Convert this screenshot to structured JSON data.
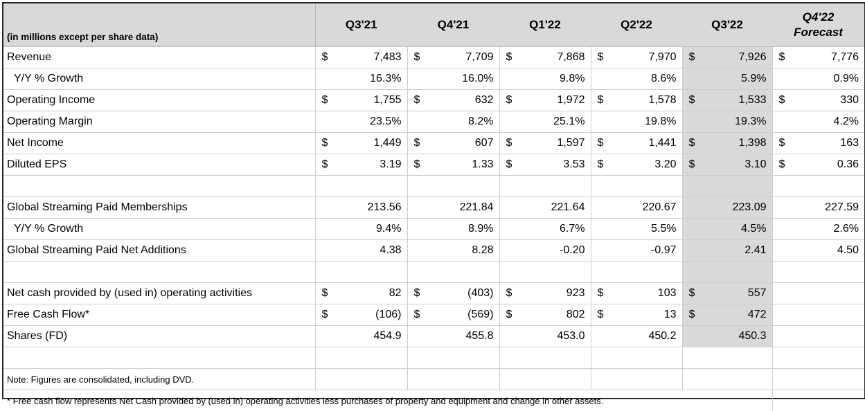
{
  "chart_data": {
    "type": "table",
    "unit_note": "(in millions except per share data)",
    "currency_symbol": "$",
    "columns": [
      "Q3'21",
      "Q4'21",
      "Q1'22",
      "Q2'22",
      "Q3'22"
    ],
    "forecast_column": {
      "line1": "Q4'22",
      "line2": "Forecast"
    },
    "highlighted_column": "Q3'22",
    "highlighted_index": 4,
    "colors": {
      "header_fill": "#d9d9d9",
      "highlight_fill": "#d9d9d9",
      "grid_line": "#cdcdcd",
      "outer_border": "#262626"
    },
    "rows": [
      {
        "kind": "data",
        "format": "money",
        "shaded": true,
        "indent": false,
        "label": "Revenue",
        "values": [
          "7,483",
          "7,709",
          "7,868",
          "7,970",
          "7,926",
          "7,776"
        ]
      },
      {
        "kind": "data",
        "format": "percent",
        "shaded": true,
        "indent": true,
        "label": "Y/Y % Growth",
        "values": [
          "16.3%",
          "16.0%",
          "9.8%",
          "8.6%",
          "5.9%",
          "0.9%"
        ]
      },
      {
        "kind": "data",
        "format": "money",
        "shaded": true,
        "indent": false,
        "label": "Operating Income",
        "values": [
          "1,755",
          "632",
          "1,972",
          "1,578",
          "1,533",
          "330"
        ]
      },
      {
        "kind": "data",
        "format": "percent",
        "shaded": true,
        "indent": false,
        "label": "Operating Margin",
        "values": [
          "23.5%",
          "8.2%",
          "25.1%",
          "19.8%",
          "19.3%",
          "4.2%"
        ]
      },
      {
        "kind": "data",
        "format": "money",
        "shaded": true,
        "indent": false,
        "label": "Net Income",
        "values": [
          "1,449",
          "607",
          "1,597",
          "1,441",
          "1,398",
          "163"
        ]
      },
      {
        "kind": "data",
        "format": "money",
        "shaded": true,
        "indent": false,
        "label": "Diluted EPS",
        "values": [
          "3.19",
          "1.33",
          "3.53",
          "3.20",
          "3.10",
          "0.36"
        ]
      },
      {
        "kind": "blank",
        "format": "plain",
        "shaded": true,
        "indent": false,
        "label": "",
        "values": [
          "",
          "",
          "",
          "",
          "",
          ""
        ]
      },
      {
        "kind": "data",
        "format": "plain",
        "shaded": true,
        "indent": false,
        "label": "Global Streaming Paid Memberships",
        "values": [
          "213.56",
          "221.84",
          "221.64",
          "220.67",
          "223.09",
          "227.59"
        ]
      },
      {
        "kind": "data",
        "format": "percent",
        "shaded": true,
        "indent": true,
        "label": "Y/Y % Growth",
        "values": [
          "9.4%",
          "8.9%",
          "6.7%",
          "5.5%",
          "4.5%",
          "2.6%"
        ]
      },
      {
        "kind": "data",
        "format": "plain",
        "shaded": true,
        "indent": false,
        "label": "Global Streaming Paid Net Additions",
        "values": [
          "4.38",
          "8.28",
          "-0.20",
          "-0.97",
          "2.41",
          "4.50"
        ]
      },
      {
        "kind": "blank",
        "format": "plain",
        "shaded": true,
        "indent": false,
        "label": "",
        "values": [
          "",
          "",
          "",
          "",
          "",
          ""
        ]
      },
      {
        "kind": "data",
        "format": "money",
        "shaded": true,
        "indent": false,
        "label": "Net cash provided by (used in) operating activities",
        "values": [
          "82",
          "(403)",
          "923",
          "103",
          "557",
          ""
        ]
      },
      {
        "kind": "data",
        "format": "money",
        "shaded": true,
        "indent": false,
        "label": "Free Cash Flow*",
        "values": [
          "(106)",
          "(569)",
          "802",
          "13",
          "472",
          ""
        ]
      },
      {
        "kind": "data",
        "format": "plain",
        "shaded": true,
        "indent": false,
        "label": "Shares (FD)",
        "values": [
          "454.9",
          "455.8",
          "453.0",
          "450.2",
          "450.3",
          ""
        ]
      },
      {
        "kind": "blank",
        "format": "plain",
        "shaded": false,
        "indent": false,
        "label": "",
        "values": [
          "",
          "",
          "",
          "",
          "",
          ""
        ]
      },
      {
        "kind": "note",
        "format": "plain",
        "shaded": false,
        "indent": false,
        "label": "Note: Figures are consolidated, including DVD.",
        "values": [
          "",
          "",
          "",
          "",
          "",
          ""
        ]
      },
      {
        "kind": "footnote",
        "format": "plain",
        "shaded": false,
        "indent": false,
        "label": "* Free cash flow represents Net Cash provided by (used in) operating activities less purchases of property and equipment and change in other assets.",
        "values": []
      }
    ]
  }
}
